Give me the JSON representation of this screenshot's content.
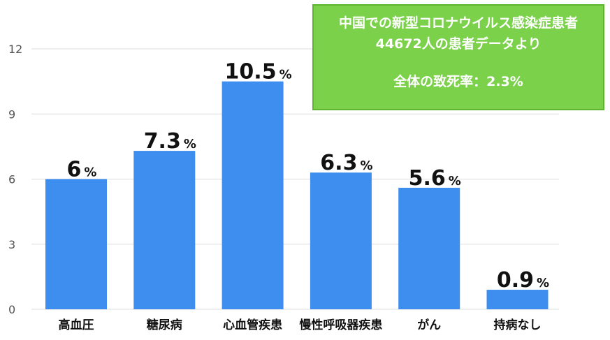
{
  "chart_data": {
    "type": "bar",
    "categories": [
      "高血圧",
      "糖尿病",
      "心血管疾患",
      "慢性呼吸器疾患",
      "がん",
      "持病なし"
    ],
    "values": [
      6,
      7.3,
      10.5,
      6.3,
      5.6,
      0.9
    ],
    "value_labels": [
      "6",
      "7.3",
      "10.5",
      "6.3",
      "5.6",
      "0.9"
    ],
    "value_unit": "%",
    "ylim": [
      0,
      12
    ],
    "yticks": [
      0,
      3,
      6,
      9,
      12
    ],
    "grid": true,
    "bar_color": "#3e8ef0",
    "title": "",
    "xlabel": "",
    "ylabel": ""
  },
  "info_box": {
    "line1": "中国での新型コロナウイルス感染症患者",
    "line2": "44672人の患者データより",
    "line3": "全体の致死率：2.3%",
    "color": "#7bd14a"
  }
}
